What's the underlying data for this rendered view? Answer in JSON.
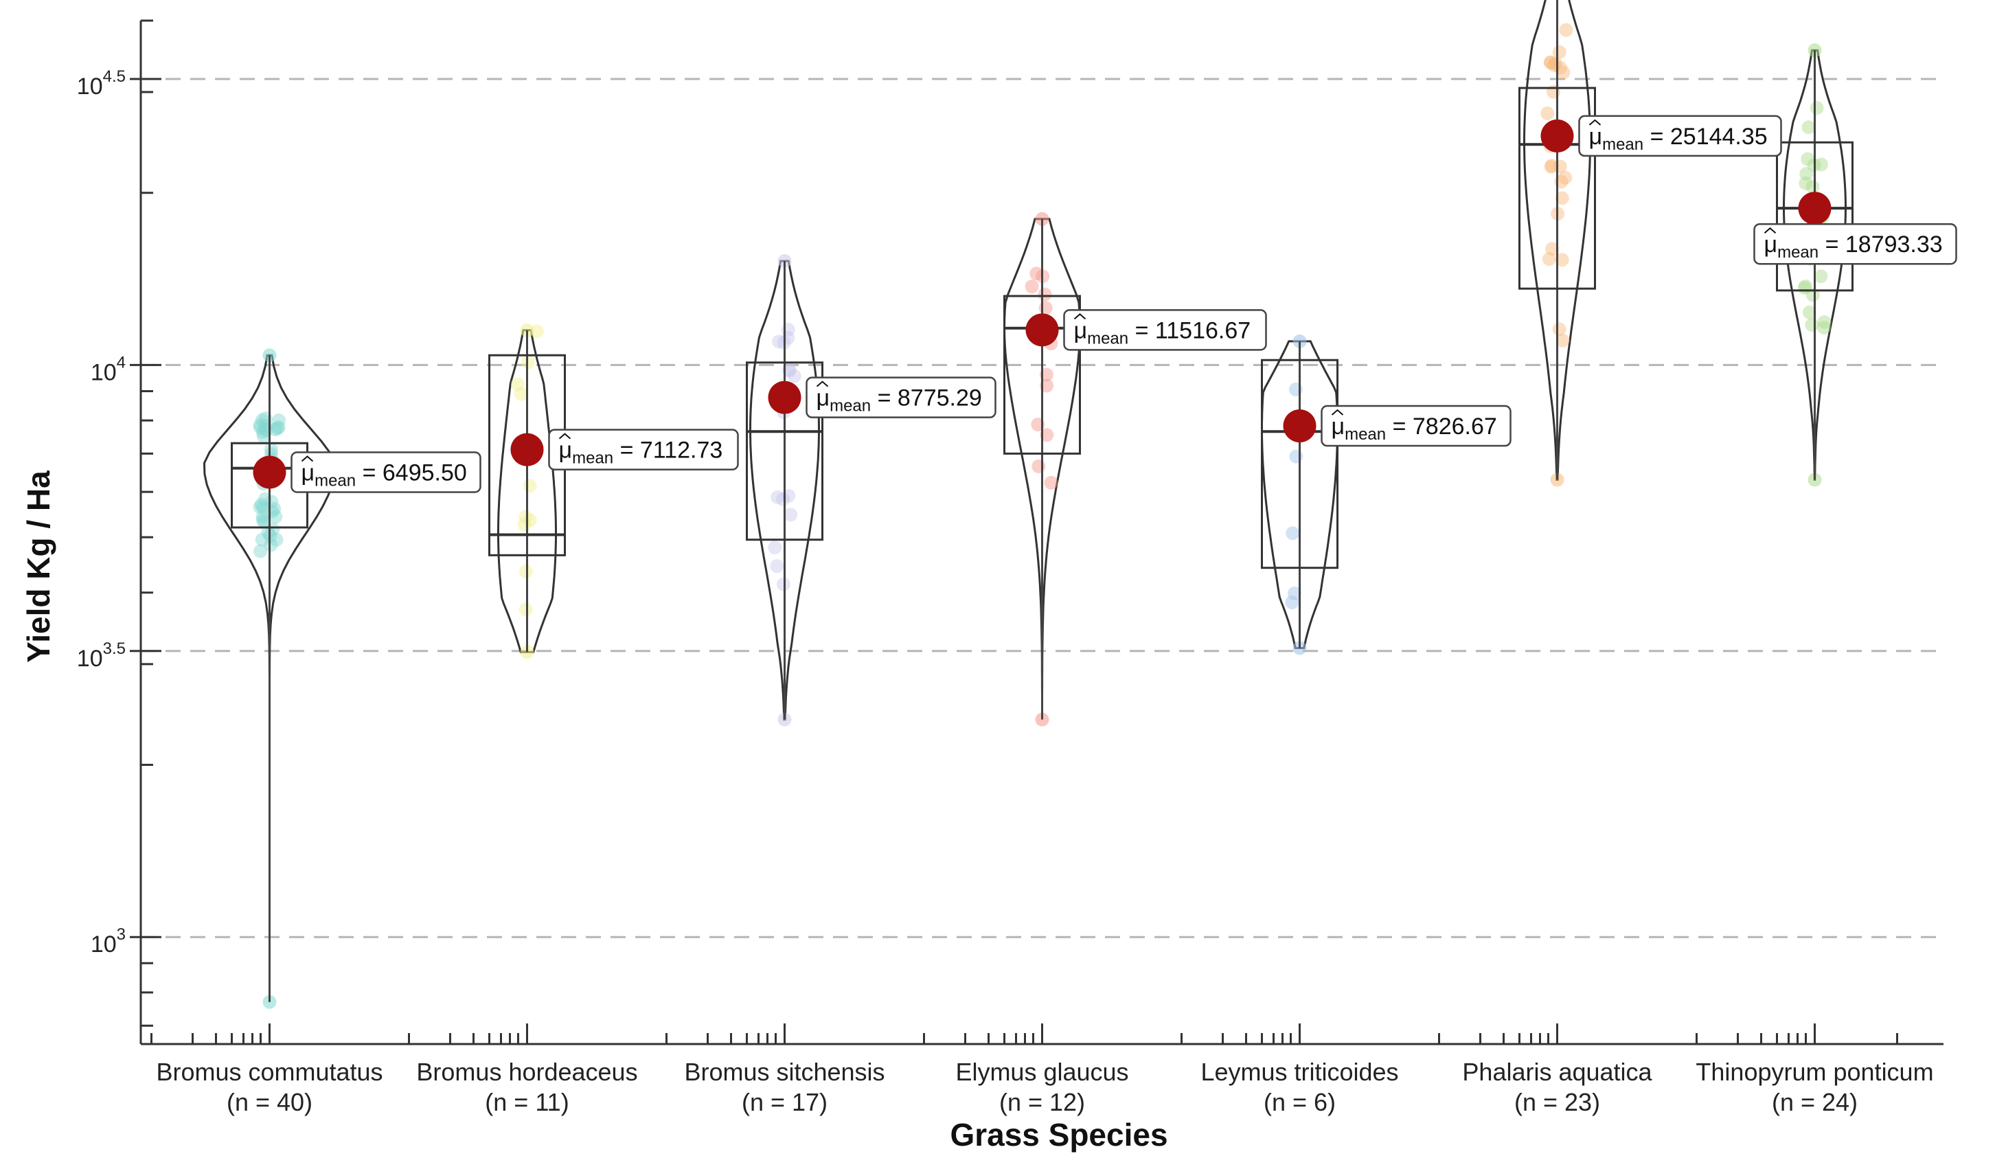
{
  "chart_data": {
    "type": "violin",
    "xlabel": "Grass Species",
    "ylabel": "Yield Kg / Ha",
    "yscale": "log10",
    "ylim": [
      650,
      40000
    ],
    "y_ticks": [
      {
        "value": 1000,
        "base": "10",
        "exp": "3"
      },
      {
        "value": 3162.28,
        "base": "10",
        "exp": "3.5"
      },
      {
        "value": 10000,
        "base": "10",
        "exp": "4"
      },
      {
        "value": 31622.78,
        "base": "10",
        "exp": "4.5"
      }
    ],
    "grid": "horizontal dashed at major ticks",
    "mean_label_prefix": "μ",
    "mean_label_subscript": "mean",
    "groups": [
      {
        "name": "Bromus commutatus",
        "n_label": "(n = 40)",
        "mean_label": "6495.50",
        "mean": 6495.5,
        "min": 770,
        "q1": 5200,
        "median": 6600,
        "q3": 7300,
        "max": 10400,
        "color": "#80d8d0"
      },
      {
        "name": "Bromus hordeaceus",
        "n_label": "(n = 11)",
        "mean_label": "7112.73",
        "mean": 7112.73,
        "min": 3150,
        "q1": 4650,
        "median": 5050,
        "q3": 10400,
        "max": 11500,
        "color": "#f0f08a"
      },
      {
        "name": "Bromus sitchensis",
        "n_label": "(n = 17)",
        "mean_label": "8775.29",
        "mean": 8775.29,
        "min": 2400,
        "q1": 4950,
        "median": 7650,
        "q3": 10100,
        "max": 15200,
        "color": "#c8c8ea"
      },
      {
        "name": "Elymus glaucus",
        "n_label": "(n = 12)",
        "mean_label": "11516.67",
        "mean": 11516.67,
        "min": 2400,
        "q1": 7000,
        "median": 11600,
        "q3": 13200,
        "max": 18000,
        "color": "#f5948a"
      },
      {
        "name": "Leymus triticoides",
        "n_label": "(n = 6)",
        "mean_label": "7826.67",
        "mean": 7826.67,
        "min": 3200,
        "q1": 4420,
        "median": 7650,
        "q3": 10200,
        "max": 11000,
        "color": "#9cc0e8"
      },
      {
        "name": "Phalaris aquatica",
        "n_label": "(n = 23)",
        "mean_label": "25144.35",
        "mean": 25144.35,
        "min": 6300,
        "q1": 13600,
        "median": 24300,
        "q3": 30500,
        "max": 51500,
        "color": "#f8b87a"
      },
      {
        "name": "Thinopyrum ponticum",
        "n_label": "(n = 24)",
        "mean_label": "18793.33",
        "mean": 18793.33,
        "min": 6300,
        "q1": 13500,
        "median": 18800,
        "q3": 24500,
        "max": 35500,
        "color": "#a8da8a"
      }
    ]
  }
}
